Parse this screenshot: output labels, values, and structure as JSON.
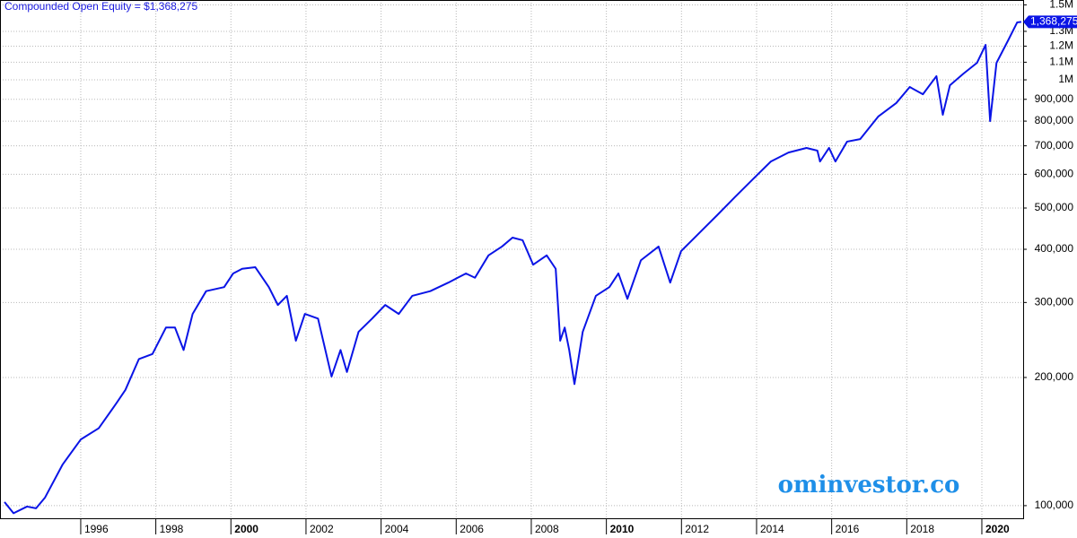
{
  "chart_data": {
    "type": "line",
    "title": "Compounded Open Equity = $1,368,275",
    "watermark": "ominvestor.co",
    "log_y": true,
    "grid": true,
    "xlim": [
      1993.85,
      2021.1
    ],
    "xticks": [
      1996,
      1998,
      2000,
      2002,
      2004,
      2006,
      2008,
      2010,
      2012,
      2014,
      2016,
      2018,
      2020
    ],
    "ylim": [
      93400,
      1540000
    ],
    "yticks": [
      {
        "value": 100000,
        "label": "100,000"
      },
      {
        "value": 200000,
        "label": "200,000"
      },
      {
        "value": 300000,
        "label": "300,000"
      },
      {
        "value": 400000,
        "label": "400,000"
      },
      {
        "value": 500000,
        "label": "500,000"
      },
      {
        "value": 600000,
        "label": "600,000"
      },
      {
        "value": 700000,
        "label": "700,000"
      },
      {
        "value": 800000,
        "label": "800,000"
      },
      {
        "value": 900000,
        "label": "900,000"
      },
      {
        "value": 1000000,
        "label": "1M"
      },
      {
        "value": 1100000,
        "label": "1.1M"
      },
      {
        "value": 1200000,
        "label": "1.2M"
      },
      {
        "value": 1300000,
        "label": "1.3M"
      },
      {
        "value": 1500000,
        "label": "1.5M"
      }
    ],
    "x": [
      1993.97,
      1994.21,
      1994.57,
      1994.81,
      1995.05,
      1995.52,
      1996.0,
      1996.48,
      1996.95,
      1997.19,
      1997.55,
      1997.91,
      1998.27,
      1998.51,
      1998.74,
      1998.98,
      1999.34,
      1999.82,
      2000.06,
      2000.3,
      2000.65,
      2001.01,
      2001.25,
      2001.49,
      2001.73,
      2001.97,
      2002.32,
      2002.68,
      2002.92,
      2003.09,
      2003.4,
      2003.76,
      2004.11,
      2004.47,
      2004.83,
      2005.31,
      2005.79,
      2006.26,
      2006.5,
      2006.86,
      2007.22,
      2007.5,
      2007.77,
      2008.05,
      2008.41,
      2008.65,
      2008.77,
      2008.89,
      2009.01,
      2009.15,
      2009.37,
      2009.72,
      2010.08,
      2010.32,
      2010.56,
      2010.92,
      2011.39,
      2011.7,
      2011.99,
      2012.35,
      2012.95,
      2013.42,
      2013.9,
      2014.38,
      2014.85,
      2015.33,
      2015.62,
      2015.69,
      2015.93,
      2016.1,
      2016.41,
      2016.76,
      2017.24,
      2017.72,
      2018.08,
      2018.43,
      2018.79,
      2018.96,
      2019.15,
      2019.51,
      2019.87,
      2020.1,
      2020.22,
      2020.39,
      2020.7,
      2020.94,
      2021.05
    ],
    "series": [
      {
        "name": "Compounded Open Equity",
        "color": "#0a14e6",
        "values": [
          102000,
          96000,
          99500,
          98600,
          104500,
          125000,
          143000,
          152000,
          174000,
          187000,
          221000,
          227000,
          262000,
          262000,
          232000,
          282000,
          319000,
          326000,
          351000,
          360000,
          363000,
          326000,
          296000,
          311000,
          244000,
          282000,
          275000,
          201000,
          232000,
          206000,
          256000,
          275000,
          296000,
          282000,
          311000,
          319000,
          334000,
          351000,
          343000,
          387000,
          406000,
          426000,
          420000,
          368000,
          387000,
          360000,
          244000,
          262000,
          232000,
          193000,
          256000,
          311000,
          326000,
          351000,
          306000,
          377000,
          406000,
          334000,
          396000,
          426000,
          481000,
          530000,
          584000,
          643000,
          675000,
          692000,
          682000,
          643000,
          692000,
          643000,
          716000,
          726000,
          820000,
          882000,
          962000,
          925000,
          1020000,
          828000,
          971000,
          1034000,
          1096000,
          1208000,
          800000,
          1096000,
          1238000,
          1364000,
          1368275
        ],
        "value_labels": [
          null,
          null,
          null,
          null,
          null,
          null,
          null,
          null,
          null,
          null,
          null,
          null,
          null,
          null,
          null,
          null,
          null,
          null,
          null,
          null,
          null,
          null,
          null,
          null,
          null,
          null,
          null,
          null,
          null,
          null,
          null,
          null,
          null,
          null,
          null,
          null,
          null,
          null,
          null,
          null,
          null,
          null,
          null,
          null,
          null,
          null,
          null,
          null,
          null,
          null,
          null,
          null,
          null,
          null,
          null,
          null,
          null,
          null,
          null,
          null,
          null,
          null,
          null,
          null,
          null,
          null,
          null,
          null,
          null,
          null,
          null,
          null,
          null,
          null,
          null,
          null,
          null,
          null,
          null,
          null,
          null,
          null,
          null,
          null,
          null,
          null,
          "1,368,275"
        ]
      }
    ]
  }
}
